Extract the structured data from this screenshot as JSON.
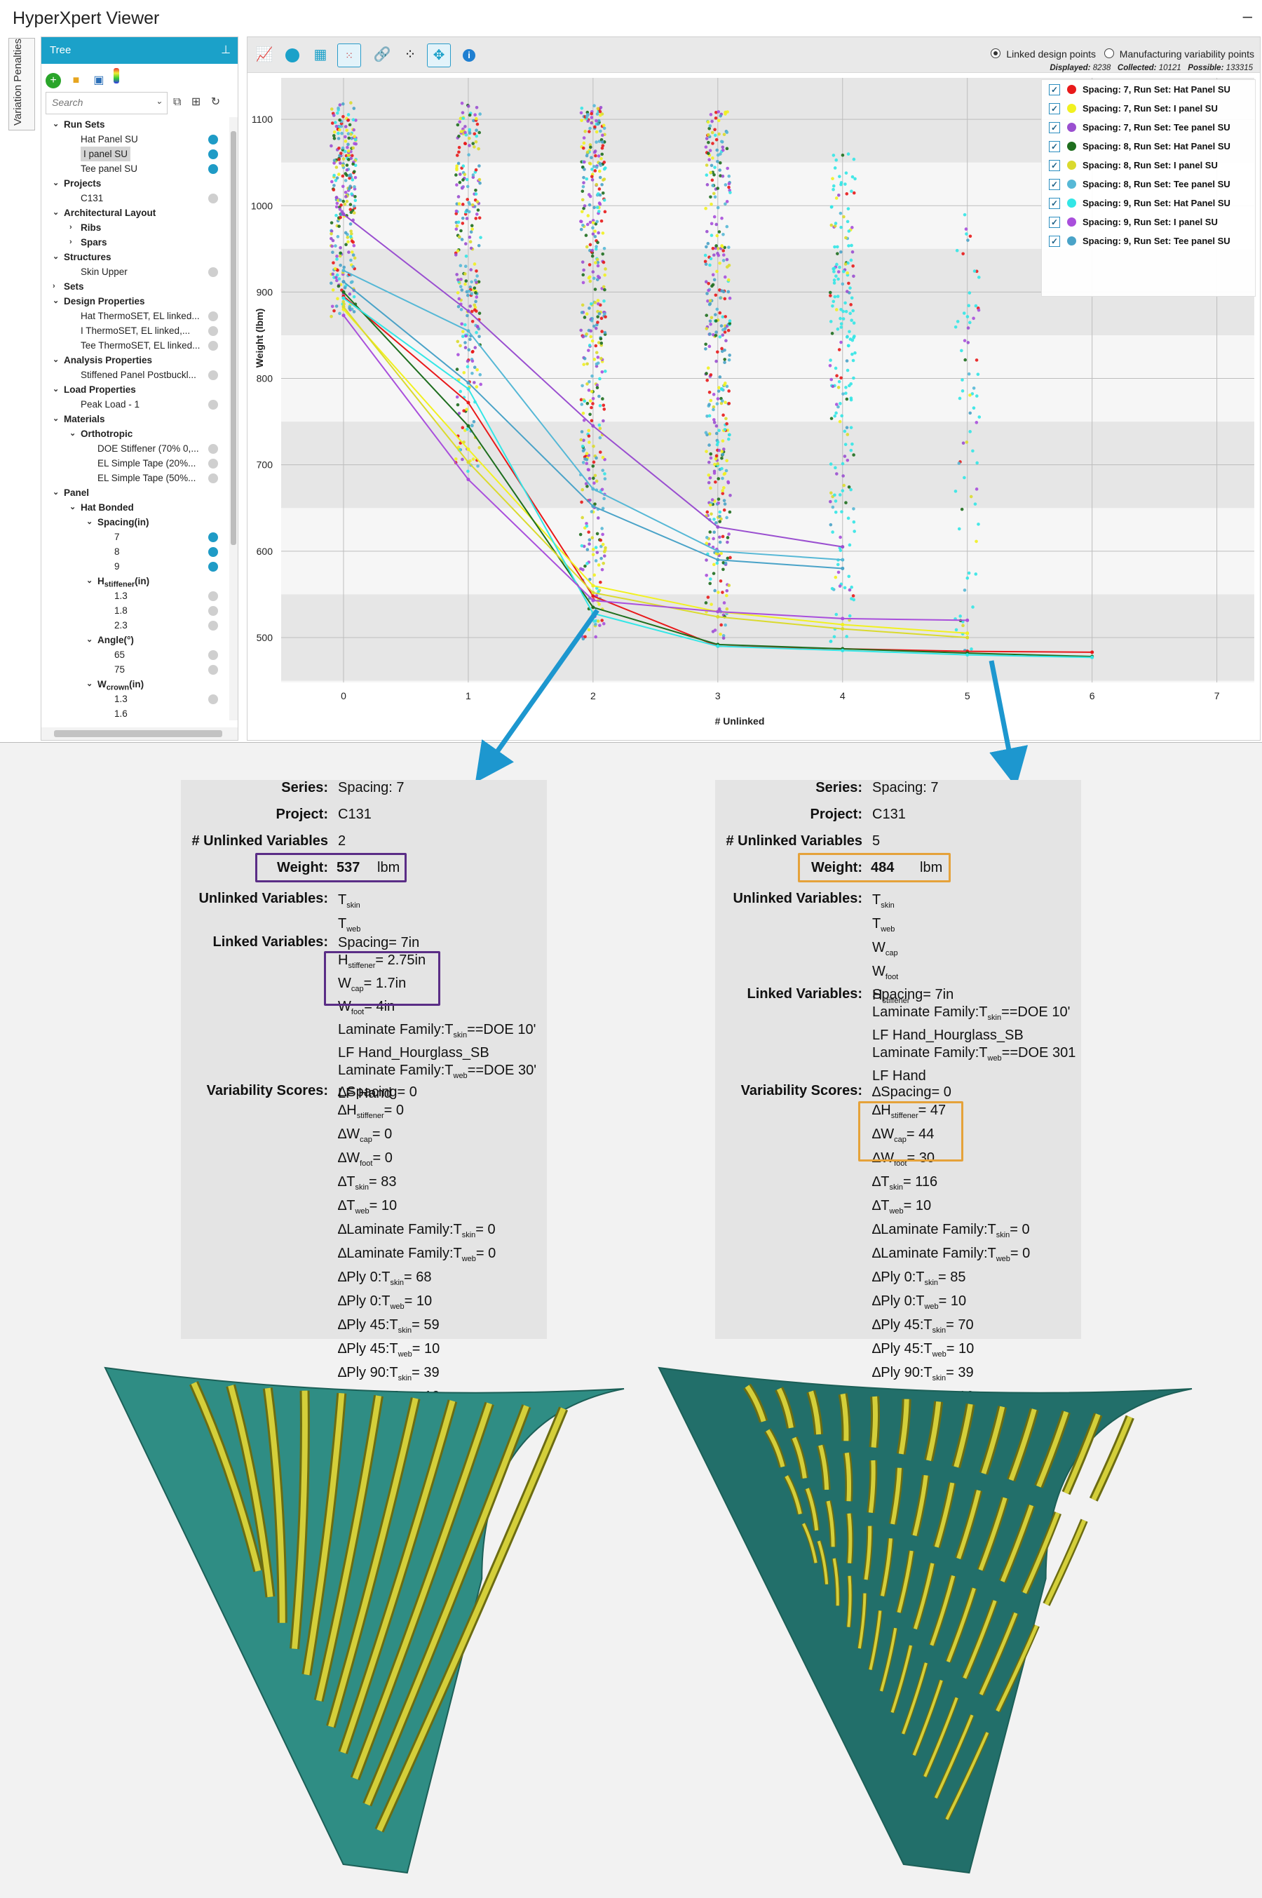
{
  "app": {
    "title": "HyperXpert Viewer",
    "minimize": "–"
  },
  "side_tab": "Variation Penalties",
  "tree": {
    "header": "Tree",
    "pin": "📌",
    "search_placeholder": "Search",
    "items": [
      {
        "label": "Run Sets",
        "level": 0,
        "bold": true,
        "arrow": "v",
        "dot": ""
      },
      {
        "label": "Hat Panel SU",
        "level": 1,
        "bold": false,
        "arrow": "",
        "dot": "#1f9bc6"
      },
      {
        "label": "I panel SU",
        "level": 1,
        "bold": false,
        "arrow": "",
        "dot": "#1f9bc6",
        "selected": true
      },
      {
        "label": "Tee panel SU",
        "level": 1,
        "bold": false,
        "arrow": "",
        "dot": "#1f9bc6"
      },
      {
        "label": "Projects",
        "level": 0,
        "bold": true,
        "arrow": "v",
        "dot": ""
      },
      {
        "label": "C131",
        "level": 1,
        "bold": false,
        "arrow": "",
        "dot": "#cfcfcf"
      },
      {
        "label": "Architectural Layout",
        "level": 0,
        "bold": true,
        "arrow": "v",
        "dot": ""
      },
      {
        "label": "Ribs",
        "level": 1,
        "bold": true,
        "arrow": ">",
        "dot": ""
      },
      {
        "label": "Spars",
        "level": 1,
        "bold": true,
        "arrow": ">",
        "dot": ""
      },
      {
        "label": "Structures",
        "level": 0,
        "bold": true,
        "arrow": "v",
        "dot": ""
      },
      {
        "label": "Skin Upper",
        "level": 1,
        "bold": false,
        "arrow": "",
        "dot": "#cfcfcf"
      },
      {
        "label": "Sets",
        "level": 0,
        "bold": true,
        "arrow": ">",
        "dot": ""
      },
      {
        "label": "Design Properties",
        "level": 0,
        "bold": true,
        "arrow": "v",
        "dot": ""
      },
      {
        "label": "Hat ThermoSET, EL linked...",
        "level": 1,
        "bold": false,
        "arrow": "",
        "dot": "#cfcfcf"
      },
      {
        "label": "I ThermoSET, EL linked,...",
        "level": 1,
        "bold": false,
        "arrow": "",
        "dot": "#cfcfcf"
      },
      {
        "label": "Tee ThermoSET, EL linked...",
        "level": 1,
        "bold": false,
        "arrow": "",
        "dot": "#cfcfcf"
      },
      {
        "label": "Analysis Properties",
        "level": 0,
        "bold": true,
        "arrow": "v",
        "dot": ""
      },
      {
        "label": "Stiffened Panel Postbuckl...",
        "level": 1,
        "bold": false,
        "arrow": "",
        "dot": "#cfcfcf"
      },
      {
        "label": "Load Properties",
        "level": 0,
        "bold": true,
        "arrow": "v",
        "dot": ""
      },
      {
        "label": "Peak Load - 1",
        "level": 1,
        "bold": false,
        "arrow": "",
        "dot": "#cfcfcf"
      },
      {
        "label": "Materials",
        "level": 0,
        "bold": true,
        "arrow": "v",
        "dot": ""
      },
      {
        "label": "Orthotropic",
        "level": 1,
        "bold": true,
        "arrow": "v",
        "dot": ""
      },
      {
        "label": "DOE Stiffener (70% 0,...",
        "level": 2,
        "bold": false,
        "arrow": "",
        "dot": "#cfcfcf"
      },
      {
        "label": "EL Simple Tape (20%...",
        "level": 2,
        "bold": false,
        "arrow": "",
        "dot": "#cfcfcf"
      },
      {
        "label": "EL Simple Tape (50%...",
        "level": 2,
        "bold": false,
        "arrow": "",
        "dot": "#cfcfcf"
      },
      {
        "label": "Panel",
        "level": 0,
        "bold": true,
        "arrow": "v",
        "dot": ""
      },
      {
        "label": "Hat Bonded",
        "level": 1,
        "bold": true,
        "arrow": "v",
        "dot": ""
      },
      {
        "label": "Spacing(in)",
        "level": 2,
        "bold": true,
        "arrow": "v",
        "dot": ""
      },
      {
        "label": "7",
        "level": 3,
        "bold": false,
        "arrow": "",
        "dot": "#1f9bc6"
      },
      {
        "label": "8",
        "level": 3,
        "bold": false,
        "arrow": "",
        "dot": "#1f9bc6"
      },
      {
        "label": "9",
        "level": 3,
        "bold": false,
        "arrow": "",
        "dot": "#1f9bc6"
      },
      {
        "label": "H",
        "sub": "stiffener",
        "suffix": "(in)",
        "level": 2,
        "bold": true,
        "arrow": "v",
        "dot": ""
      },
      {
        "label": "1.3",
        "level": 3,
        "bold": false,
        "arrow": "",
        "dot": "#cfcfcf"
      },
      {
        "label": "1.8",
        "level": 3,
        "bold": false,
        "arrow": "",
        "dot": "#cfcfcf"
      },
      {
        "label": "2.3",
        "level": 3,
        "bold": false,
        "arrow": "",
        "dot": "#cfcfcf"
      },
      {
        "label": "Angle(°)",
        "level": 2,
        "bold": true,
        "arrow": "v",
        "dot": ""
      },
      {
        "label": "65",
        "level": 3,
        "bold": false,
        "arrow": "",
        "dot": "#cfcfcf"
      },
      {
        "label": "75",
        "level": 3,
        "bold": false,
        "arrow": "",
        "dot": "#cfcfcf"
      },
      {
        "label": "W",
        "sub": "crown",
        "suffix": "(in)",
        "level": 2,
        "bold": true,
        "arrow": "v",
        "dot": ""
      },
      {
        "label": "1.3",
        "level": 3,
        "bold": false,
        "arrow": "",
        "dot": "#cfcfcf"
      },
      {
        "label": "1.6",
        "level": 3,
        "bold": false,
        "arrow": "",
        "dot": ""
      }
    ]
  },
  "toolbar": {
    "radio_linked": "Linked design points",
    "radio_mfg": "Manufacturing variability points",
    "displayed_label": "Displayed:",
    "displayed": "8238",
    "collected_label": "Collected:",
    "collected": "10121",
    "possible_label": "Possible:",
    "possible": "133315"
  },
  "chart_data": {
    "type": "scatter",
    "xlabel": "# Unlinked",
    "ylabel": "Weight (lbm)",
    "xlim": [
      -0.5,
      7.3
    ],
    "ylim": [
      448,
      1148
    ],
    "x_ticks": [
      0,
      1,
      2,
      3,
      4,
      5,
      6,
      7
    ],
    "y_ticks": [
      500,
      600,
      700,
      800,
      900,
      1000,
      1100
    ],
    "grid": true,
    "legend_position": "top-right",
    "series": [
      {
        "name": "Spacing: 7, Run Set: Hat Panel SU",
        "color": "#e8191a",
        "values": [
          [
            0,
            895
          ],
          [
            1,
            772
          ],
          [
            2,
            548
          ],
          [
            3,
            490
          ],
          [
            4,
            487
          ],
          [
            5,
            484
          ],
          [
            6,
            483
          ]
        ]
      },
      {
        "name": "Spacing: 7, Run Set: I panel SU",
        "color": "#f1f120",
        "values": [
          [
            0,
            880
          ],
          [
            1,
            718
          ],
          [
            2,
            560
          ],
          [
            3,
            530
          ],
          [
            4,
            515
          ],
          [
            5,
            505
          ]
        ]
      },
      {
        "name": "Spacing: 7, Run Set: Tee panel SU",
        "color": "#9a4fd0",
        "values": [
          [
            0,
            990
          ],
          [
            1,
            878
          ],
          [
            2,
            745
          ],
          [
            3,
            628
          ],
          [
            4,
            605
          ]
        ]
      },
      {
        "name": "Spacing: 8, Run Set: Hat Panel SU",
        "color": "#1e6e1e",
        "values": [
          [
            0,
            900
          ],
          [
            1,
            745
          ],
          [
            2,
            535
          ],
          [
            3,
            492
          ],
          [
            4,
            487
          ],
          [
            5,
            482
          ],
          [
            6,
            478
          ]
        ]
      },
      {
        "name": "Spacing: 8, Run Set: I panel SU",
        "color": "#dada2e",
        "values": [
          [
            0,
            883
          ],
          [
            1,
            703
          ],
          [
            2,
            552
          ],
          [
            3,
            524
          ],
          [
            4,
            510
          ],
          [
            5,
            500
          ]
        ]
      },
      {
        "name": "Spacing: 8, Run Set: Tee panel SU",
        "color": "#56b8d6",
        "values": [
          [
            0,
            925
          ],
          [
            1,
            855
          ],
          [
            2,
            672
          ],
          [
            3,
            600
          ],
          [
            4,
            590
          ]
        ]
      },
      {
        "name": "Spacing: 9, Run Set: Hat Panel SU",
        "color": "#33e6e6",
        "values": [
          [
            0,
            893
          ],
          [
            1,
            788
          ],
          [
            2,
            528
          ],
          [
            3,
            490
          ],
          [
            4,
            485
          ],
          [
            5,
            480
          ],
          [
            6,
            477
          ]
        ]
      },
      {
        "name": "Spacing: 9, Run Set: I panel SU",
        "color": "#a94fdc",
        "values": [
          [
            0,
            873
          ],
          [
            1,
            683
          ],
          [
            2,
            543
          ],
          [
            3,
            530
          ],
          [
            4,
            522
          ],
          [
            5,
            520
          ]
        ]
      },
      {
        "name": "Spacing: 9, Run Set: Tee panel SU",
        "color": "#4aa3c8",
        "values": [
          [
            0,
            912
          ],
          [
            1,
            795
          ],
          [
            2,
            652
          ],
          [
            3,
            590
          ],
          [
            4,
            580
          ]
        ]
      }
    ]
  },
  "card_left": {
    "series_label": "Series:",
    "series": "Spacing: 7",
    "project_label": "Project:",
    "project": "C131",
    "unlinked_label": "# Unlinked Variables",
    "unlinked": "2",
    "weight_label": "Weight:",
    "weight": "537",
    "weight_unit": "lbm",
    "unlinked_vars_label": "Unlinked Variables:",
    "linked_vars_label": "Linked Variables:",
    "scores_label": "Variability Scores:",
    "highlight_color": "#5a2d86"
  },
  "card_right": {
    "series_label": "Series:",
    "series": "Spacing: 7",
    "project_label": "Project:",
    "project": "C131",
    "unlinked_label": "# Unlinked Variables",
    "unlinked": "5",
    "weight_label": "Weight:",
    "weight": "484",
    "weight_unit": "lbm",
    "unlinked_vars_label": "Unlinked Variables:",
    "linked_vars_label": "Linked Variables:",
    "scores_label": "Variability Scores:",
    "highlight_color": "#e5a23a"
  }
}
